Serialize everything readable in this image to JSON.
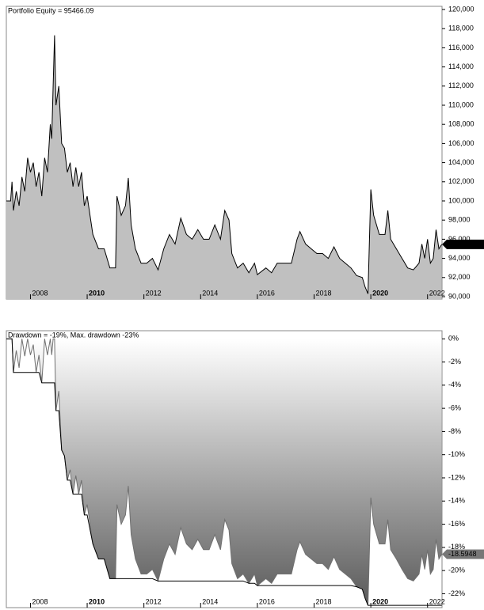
{
  "chart_data": [
    {
      "type": "area",
      "title": "Portfolio Equity = 95466.09",
      "color": "#c0c0c0",
      "line_color": "#000000",
      "x": [
        2007.15,
        2007.3,
        2007.35,
        2007.4,
        2007.5,
        2007.6,
        2007.7,
        2007.8,
        2007.9,
        2008.0,
        2008.1,
        2008.2,
        2008.3,
        2008.4,
        2008.5,
        2008.6,
        2008.7,
        2008.75,
        2008.8,
        2008.85,
        2008.9,
        2009.0,
        2009.1,
        2009.2,
        2009.3,
        2009.4,
        2009.5,
        2009.6,
        2009.7,
        2009.8,
        2009.9,
        2010.0,
        2010.2,
        2010.4,
        2010.6,
        2010.8,
        2011.0,
        2011.05,
        2011.2,
        2011.35,
        2011.45,
        2011.55,
        2011.7,
        2011.9,
        2012.1,
        2012.3,
        2012.5,
        2012.7,
        2012.9,
        2013.1,
        2013.3,
        2013.5,
        2013.7,
        2013.9,
        2014.1,
        2014.3,
        2014.5,
        2014.7,
        2014.85,
        2015.0,
        2015.1,
        2015.3,
        2015.5,
        2015.7,
        2015.9,
        2016.0,
        2016.3,
        2016.5,
        2016.7,
        2016.9,
        2017.2,
        2017.4,
        2017.5,
        2017.7,
        2017.9,
        2018.1,
        2018.3,
        2018.5,
        2018.7,
        2018.9,
        2019.1,
        2019.3,
        2019.5,
        2019.7,
        2019.8,
        2019.9,
        2020.0,
        2020.1,
        2020.3,
        2020.5,
        2020.6,
        2020.7,
        2020.9,
        2021.1,
        2021.3,
        2021.5,
        2021.7,
        2021.8,
        2021.9,
        2022.0,
        2022.1,
        2022.2,
        2022.3,
        2022.4,
        2022.5
      ],
      "values": [
        100000,
        100000,
        102000,
        99000,
        101000,
        99500,
        102500,
        101000,
        104500,
        103000,
        104000,
        101500,
        103000,
        100500,
        104500,
        103000,
        108000,
        106500,
        112000,
        117300,
        110000,
        112000,
        106000,
        105500,
        103000,
        104000,
        101500,
        103500,
        101500,
        103000,
        99500,
        100500,
        96500,
        95000,
        95000,
        93000,
        93000,
        100500,
        98500,
        99500,
        102400,
        97500,
        95000,
        93500,
        93500,
        94000,
        92800,
        95000,
        96500,
        95500,
        98200,
        96500,
        96000,
        97000,
        96000,
        96000,
        97500,
        96000,
        99000,
        98000,
        94500,
        93000,
        93500,
        92500,
        93500,
        92300,
        93000,
        92500,
        93500,
        93500,
        93500,
        96000,
        96800,
        95500,
        95000,
        94500,
        94500,
        94000,
        95200,
        94000,
        93500,
        93000,
        92200,
        92000,
        91000,
        90300,
        101200,
        98500,
        96500,
        96500,
        99000,
        96000,
        95000,
        94000,
        93000,
        92800,
        93500,
        95500,
        94000,
        96000,
        93500,
        94000,
        97000,
        95000,
        95466.09
      ],
      "last_value_label": "95,466.1",
      "xlim": [
        2007.15,
        2022.51
      ],
      "xticks": [
        2008,
        2010,
        2012,
        2014,
        2016,
        2018,
        2020,
        2022
      ],
      "ylim": [
        89750,
        120330
      ],
      "yticks": [
        {
          "value": 90000,
          "label": "90,000"
        },
        {
          "value": 92000,
          "label": "92,000"
        },
        {
          "value": 94000,
          "label": "94,000"
        },
        {
          "value": 96000,
          "label": "96,000"
        },
        {
          "value": 98000,
          "label": "98,000"
        },
        {
          "value": 100000,
          "label": "100,000"
        },
        {
          "value": 102000,
          "label": "102,000"
        },
        {
          "value": 104000,
          "label": "104,000"
        },
        {
          "value": 106000,
          "label": "106,000"
        },
        {
          "value": 108000,
          "label": "108,000"
        },
        {
          "value": 110000,
          "label": "110,000"
        },
        {
          "value": 112000,
          "label": "112,000"
        },
        {
          "value": 114000,
          "label": "114,000"
        },
        {
          "value": 116000,
          "label": "116,000"
        },
        {
          "value": 118000,
          "label": "118,000"
        },
        {
          "value": 120000,
          "label": "120,000"
        }
      ]
    },
    {
      "type": "drawdown",
      "title": "Drawdown = -19%, Max. drawdown -23%",
      "color": "#707070",
      "line_color": "#000000",
      "x": [
        2007.15,
        2007.3,
        2007.35,
        2007.4,
        2007.5,
        2007.6,
        2007.7,
        2007.8,
        2007.9,
        2008.0,
        2008.1,
        2008.2,
        2008.3,
        2008.4,
        2008.5,
        2008.6,
        2008.7,
        2008.75,
        2008.8,
        2008.85,
        2008.9,
        2009.0,
        2009.1,
        2009.2,
        2009.3,
        2009.4,
        2009.5,
        2009.6,
        2009.7,
        2009.8,
        2009.9,
        2010.0,
        2010.2,
        2010.4,
        2010.6,
        2010.8,
        2011.0,
        2011.05,
        2011.2,
        2011.35,
        2011.45,
        2011.55,
        2011.7,
        2011.9,
        2012.1,
        2012.3,
        2012.5,
        2012.7,
        2012.9,
        2013.1,
        2013.3,
        2013.5,
        2013.7,
        2013.9,
        2014.1,
        2014.3,
        2014.5,
        2014.7,
        2014.85,
        2015.0,
        2015.1,
        2015.3,
        2015.5,
        2015.7,
        2015.9,
        2016.0,
        2016.3,
        2016.5,
        2016.7,
        2016.9,
        2017.2,
        2017.4,
        2017.5,
        2017.7,
        2017.9,
        2018.1,
        2018.3,
        2018.5,
        2018.7,
        2018.9,
        2019.1,
        2019.3,
        2019.5,
        2019.7,
        2019.8,
        2019.9,
        2020.0,
        2020.1,
        2020.3,
        2020.5,
        2020.6,
        2020.7,
        2020.9,
        2021.1,
        2021.3,
        2021.5,
        2021.7,
        2021.8,
        2021.9,
        2022.0,
        2022.1,
        2022.2,
        2022.3,
        2022.4,
        2022.5
      ],
      "values": [
        0,
        0,
        0,
        -2.9,
        -1.0,
        -2.5,
        0,
        -1.5,
        0,
        -1.4,
        -0.5,
        -2.9,
        -1.4,
        -3.8,
        0,
        -1.4,
        0,
        -1.4,
        0,
        0,
        -6.2,
        -4.5,
        -9.6,
        -10.1,
        -12.2,
        -11.3,
        -13.4,
        -11.8,
        -13.4,
        -12.2,
        -15.2,
        -14.3,
        -17.7,
        -19.0,
        -19.0,
        -20.7,
        -20.7,
        -14.3,
        -16.0,
        -15.2,
        -12.7,
        -16.9,
        -19.0,
        -20.3,
        -20.3,
        -19.9,
        -20.9,
        -19.0,
        -17.7,
        -18.6,
        -16.3,
        -17.7,
        -18.2,
        -17.3,
        -18.2,
        -18.2,
        -16.9,
        -18.2,
        -15.6,
        -16.5,
        -19.4,
        -20.7,
        -20.3,
        -21.1,
        -20.3,
        -21.3,
        -20.7,
        -21.1,
        -20.3,
        -20.3,
        -20.3,
        -18.2,
        -17.5,
        -18.6,
        -19.0,
        -19.4,
        -19.4,
        -19.9,
        -18.8,
        -19.9,
        -20.3,
        -20.7,
        -21.4,
        -21.6,
        -22.4,
        -23.0,
        -13.7,
        -16.0,
        -17.7,
        -17.7,
        -15.6,
        -18.2,
        -19.0,
        -19.9,
        -20.7,
        -20.9,
        -20.3,
        -18.6,
        -19.9,
        -18.2,
        -20.3,
        -19.9,
        -17.3,
        -19.0,
        -18.5948
      ],
      "max_values": [
        0,
        0,
        0,
        -2.9,
        -2.9,
        -2.9,
        -2.9,
        -2.9,
        -2.9,
        -2.9,
        -2.9,
        -2.9,
        -2.9,
        -3.8,
        -3.8,
        -3.8,
        -3.8,
        -3.8,
        -3.8,
        -3.8,
        -6.2,
        -6.2,
        -9.6,
        -10.1,
        -12.2,
        -12.2,
        -13.4,
        -13.4,
        -13.4,
        -13.4,
        -15.2,
        -15.2,
        -17.7,
        -19.0,
        -19.0,
        -20.7,
        -20.7,
        -20.7,
        -20.7,
        -20.7,
        -20.7,
        -20.7,
        -20.7,
        -20.7,
        -20.7,
        -20.7,
        -20.9,
        -20.9,
        -20.9,
        -20.9,
        -20.9,
        -20.9,
        -20.9,
        -20.9,
        -20.9,
        -20.9,
        -20.9,
        -20.9,
        -20.9,
        -20.9,
        -20.9,
        -20.9,
        -20.9,
        -21.1,
        -21.1,
        -21.3,
        -21.3,
        -21.3,
        -21.3,
        -21.3,
        -21.3,
        -21.3,
        -21.3,
        -21.3,
        -21.3,
        -21.3,
        -21.3,
        -21.3,
        -21.3,
        -21.3,
        -21.3,
        -21.3,
        -21.4,
        -21.6,
        -22.4,
        -23.0,
        -23.0,
        -23.0,
        -23.0,
        -23.0,
        -23.0,
        -23.0,
        -23.0,
        -23.0,
        -23.0,
        -23.0,
        -23.0,
        -23.0,
        -23.0,
        -23.0,
        -23.0,
        -23.0,
        -23.0,
        -23.0,
        -23.0
      ],
      "last_value_label": "-18.5948",
      "xlim": [
        2007.15,
        2022.51
      ],
      "xticks": [
        2008,
        2010,
        2012,
        2014,
        2016,
        2018,
        2020,
        2022
      ],
      "ylim": [
        -23.2,
        0.7
      ],
      "yticks": [
        {
          "value": 0,
          "label": "0%"
        },
        {
          "value": -2,
          "label": "-2%"
        },
        {
          "value": -4,
          "label": "-4%"
        },
        {
          "value": -6,
          "label": "-6%"
        },
        {
          "value": -8,
          "label": "-8%"
        },
        {
          "value": -10,
          "label": "-10%"
        },
        {
          "value": -12,
          "label": "-12%"
        },
        {
          "value": -14,
          "label": "-14%"
        },
        {
          "value": -16,
          "label": "-16%"
        },
        {
          "value": -18,
          "label": "-18%"
        },
        {
          "value": -20,
          "label": "-20%"
        },
        {
          "value": -22,
          "label": "-22%"
        }
      ]
    }
  ]
}
